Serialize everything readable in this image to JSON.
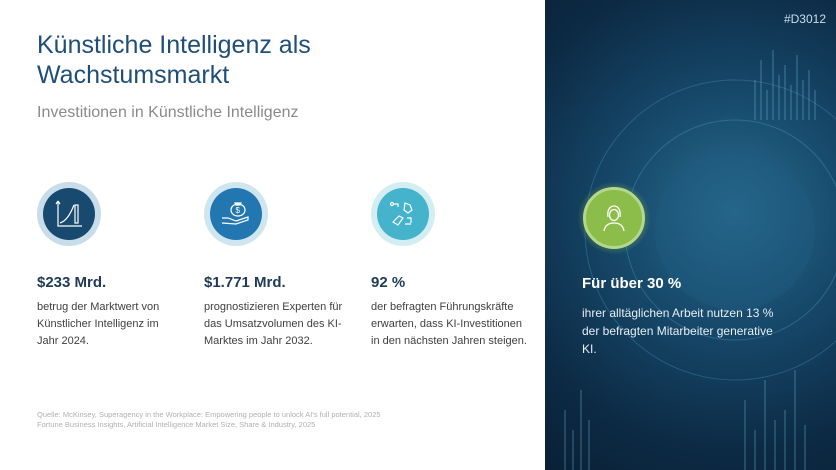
{
  "title": "Künstliche Intelligenz als Wachstumsmarkt",
  "subtitle": "Investitionen in Künstliche Intelligenz",
  "stats": [
    {
      "icon": "growth-chart-icon",
      "value": "$233 Mrd.",
      "desc": "betrug der Marktwert von Künstlicher Intelligenz im Jahr 2024.",
      "color": "#174a6e",
      "ring": "#c9dcea"
    },
    {
      "icon": "money-bag-hand-icon",
      "value": "$1.771 Mrd.",
      "desc": "prognostizieren Experten für das Umsatzvolumen des KI-Marktes im Jahr 2032.",
      "color": "#2377b0",
      "ring": "#cfe6f0"
    },
    {
      "icon": "robot-human-hand-icon",
      "value": "92 %",
      "desc": "der befragten Führungskräfte erwarten, dass KI-Investitionen in den nächsten Jahren steigen.",
      "color": "#45b3cc",
      "ring": "#d3edf3"
    }
  ],
  "panel": {
    "code": "#D3012",
    "icon": "person-icon",
    "value": "Für über 30 %",
    "desc": "ihrer alltäglichen Arbeit nutzen 13 % der befragten Mitarbeiter generative KI.",
    "accent": "#8cbd4a"
  },
  "source": [
    "Quelle: McKinsey, Superagency in the Workplace: Empowering people to unlock AI’s full potential, 2025",
    "Fortune Business Insights, Artificial Intelligence Market Size, Share & Industry, 2025"
  ]
}
